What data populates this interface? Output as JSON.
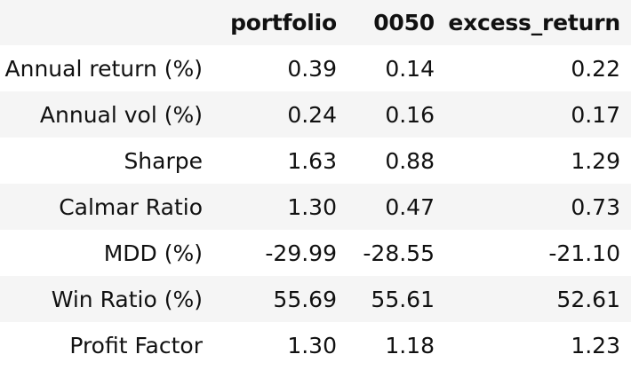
{
  "table": {
    "columns": [
      "",
      "portfolio",
      "0050",
      "excess_return"
    ],
    "rows": [
      {
        "label": "Annual return (%)",
        "portfolio": "0.39",
        "bench": "0.14",
        "excess": "0.22"
      },
      {
        "label": "Annual vol (%)",
        "portfolio": "0.24",
        "bench": "0.16",
        "excess": "0.17"
      },
      {
        "label": "Sharpe",
        "portfolio": "1.63",
        "bench": "0.88",
        "excess": "1.29"
      },
      {
        "label": "Calmar Ratio",
        "portfolio": "1.30",
        "bench": "0.47",
        "excess": "0.73"
      },
      {
        "label": "MDD (%)",
        "portfolio": "-29.99",
        "bench": "-28.55",
        "excess": "-21.10"
      },
      {
        "label": "Win Ratio (%)",
        "portfolio": "55.69",
        "bench": "55.61",
        "excess": "52.61"
      },
      {
        "label": "Profit Factor",
        "portfolio": "1.30",
        "bench": "1.18",
        "excess": "1.23"
      }
    ]
  }
}
